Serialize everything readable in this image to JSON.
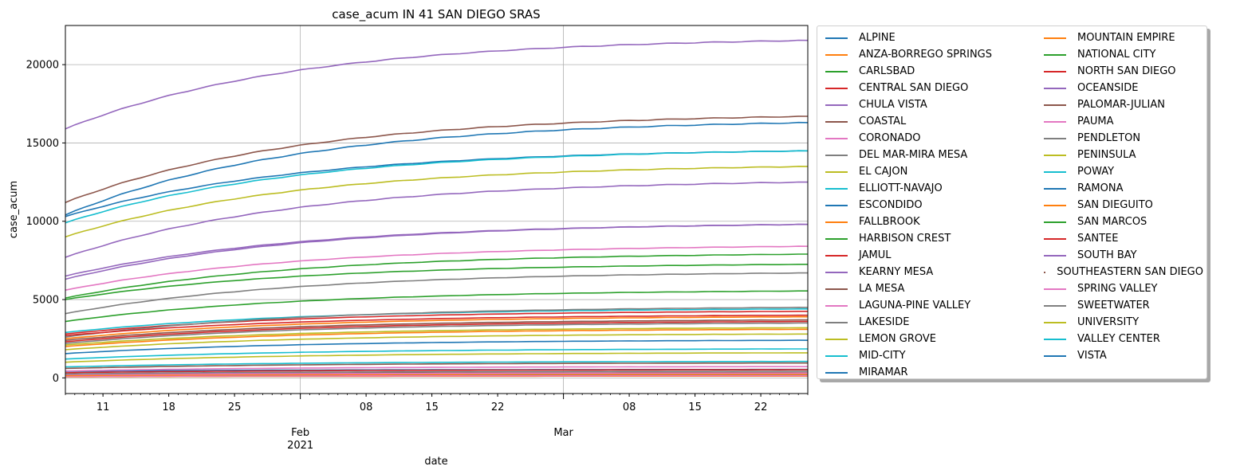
{
  "chart_data": {
    "type": "line",
    "title": "case_acum IN 41 SAN DIEGO SRAS",
    "xlabel": "date",
    "ylabel": "case_acum",
    "x_start": "2021-01-07",
    "x_end": "2021-03-27",
    "ylim": [
      -1000,
      22500
    ],
    "grid": true,
    "legend_placement": "outside right, 2 columns",
    "y_ticks": [
      0,
      5000,
      10000,
      15000,
      20000
    ],
    "x_ticks": [
      {
        "date": "2021-01-11",
        "label": "11",
        "major": false
      },
      {
        "date": "2021-01-18",
        "label": "18",
        "major": false
      },
      {
        "date": "2021-01-25",
        "label": "25",
        "major": false
      },
      {
        "date": "2021-02-01",
        "label": "Feb\n2021",
        "major": true
      },
      {
        "date": "2021-02-08",
        "label": "08",
        "major": false
      },
      {
        "date": "2021-02-15",
        "label": "15",
        "major": false
      },
      {
        "date": "2021-02-22",
        "label": "22",
        "major": false
      },
      {
        "date": "2021-03-01",
        "label": "Mar",
        "major": true
      },
      {
        "date": "2021-03-08",
        "label": "08",
        "major": false
      },
      {
        "date": "2021-03-15",
        "label": "15",
        "major": false
      },
      {
        "date": "2021-03-22",
        "label": "22",
        "major": false
      }
    ],
    "series": [
      {
        "name": "ALPINE",
        "color": "#1f77b4",
        "start": 420,
        "end": 540
      },
      {
        "name": "ANZA-BORREGO SPRINGS",
        "color": "#ff7f0e",
        "start": 70,
        "end": 110
      },
      {
        "name": "CARLSBAD",
        "color": "#2ca02c",
        "start": 3600,
        "end": 5550
      },
      {
        "name": "CENTRAL SAN DIEGO",
        "color": "#d62728",
        "start": 2800,
        "end": 4250
      },
      {
        "name": "CHULA VISTA",
        "color": "#9467bd",
        "start": 15900,
        "end": 21550
      },
      {
        "name": "COASTAL",
        "color": "#8c564b",
        "start": 600,
        "end": 950
      },
      {
        "name": "CORONADO",
        "color": "#e377c2",
        "start": 440,
        "end": 720
      },
      {
        "name": "DEL MAR-MIRA MESA",
        "color": "#7f7f7f",
        "start": 2200,
        "end": 3500
      },
      {
        "name": "EL CAJON",
        "color": "#bcbd22",
        "start": 9000,
        "end": 13500
      },
      {
        "name": "ELLIOTT-NAVAJO",
        "color": "#17becf",
        "start": 2900,
        "end": 4400
      },
      {
        "name": "ESCONDIDO",
        "color": "#1f77b4",
        "start": 10300,
        "end": 14500
      },
      {
        "name": "FALLBROOK",
        "color": "#ff7f0e",
        "start": 2500,
        "end": 3900
      },
      {
        "name": "HARBISON CREST",
        "color": "#2ca02c",
        "start": 110,
        "end": 180
      },
      {
        "name": "JAMUL",
        "color": "#d62728",
        "start": 330,
        "end": 520
      },
      {
        "name": "KEARNY MESA",
        "color": "#9467bd",
        "start": 7700,
        "end": 12500
      },
      {
        "name": "LA MESA",
        "color": "#8c564b",
        "start": 2400,
        "end": 3700
      },
      {
        "name": "LAGUNA-PINE VALLEY",
        "color": "#e377c2",
        "start": 90,
        "end": 140
      },
      {
        "name": "LAKESIDE",
        "color": "#7f7f7f",
        "start": 2600,
        "end": 4500
      },
      {
        "name": "LEMON GROVE",
        "color": "#bcbd22",
        "start": 1800,
        "end": 2800
      },
      {
        "name": "MID-CITY",
        "color": "#17becf",
        "start": 9900,
        "end": 14500
      },
      {
        "name": "MIRAMAR",
        "color": "#1f77b4",
        "start": 190,
        "end": 250
      },
      {
        "name": "MOUNTAIN EMPIRE",
        "color": "#ff7f0e",
        "start": 150,
        "end": 230
      },
      {
        "name": "NATIONAL CITY",
        "color": "#2ca02c",
        "start": 5100,
        "end": 7900
      },
      {
        "name": "NORTH SAN DIEGO",
        "color": "#d62728",
        "start": 2300,
        "end": 3600
      },
      {
        "name": "OCEANSIDE",
        "color": "#9467bd",
        "start": 6500,
        "end": 9800
      },
      {
        "name": "PALOMAR-JULIAN",
        "color": "#8c564b",
        "start": 230,
        "end": 330
      },
      {
        "name": "PAUMA",
        "color": "#e377c2",
        "start": 210,
        "end": 300
      },
      {
        "name": "PENDLETON",
        "color": "#7f7f7f",
        "start": 250,
        "end": 420
      },
      {
        "name": "PENINSULA",
        "color": "#bcbd22",
        "start": 2100,
        "end": 3200
      },
      {
        "name": "POWAY",
        "color": "#17becf",
        "start": 1200,
        "end": 1850
      },
      {
        "name": "RAMONA",
        "color": "#1f77b4",
        "start": 1550,
        "end": 2400
      },
      {
        "name": "SAN DIEGUITO",
        "color": "#ff7f0e",
        "start": 2000,
        "end": 3100
      },
      {
        "name": "SAN MARCOS",
        "color": "#2ca02c",
        "start": 5000,
        "end": 7250
      },
      {
        "name": "SANTEE",
        "color": "#d62728",
        "start": 2700,
        "end": 4000
      },
      {
        "name": "SOUTH BAY",
        "color": "#9467bd",
        "start": 6300,
        "end": 9800
      },
      {
        "name": "SOUTHEASTERN SAN DIEGO",
        "color": "#8c564b",
        "start": 11200,
        "end": 16700
      },
      {
        "name": "SPRING VALLEY",
        "color": "#e377c2",
        "start": 5600,
        "end": 8400
      },
      {
        "name": "SWEETWATER",
        "color": "#7f7f7f",
        "start": 4100,
        "end": 6700
      },
      {
        "name": "UNIVERSITY",
        "color": "#bcbd22",
        "start": 1000,
        "end": 1600
      },
      {
        "name": "VALLEY CENTER",
        "color": "#17becf",
        "start": 700,
        "end": 1050
      },
      {
        "name": "VISTA",
        "color": "#1f77b4",
        "start": 10400,
        "end": 16300
      }
    ]
  }
}
